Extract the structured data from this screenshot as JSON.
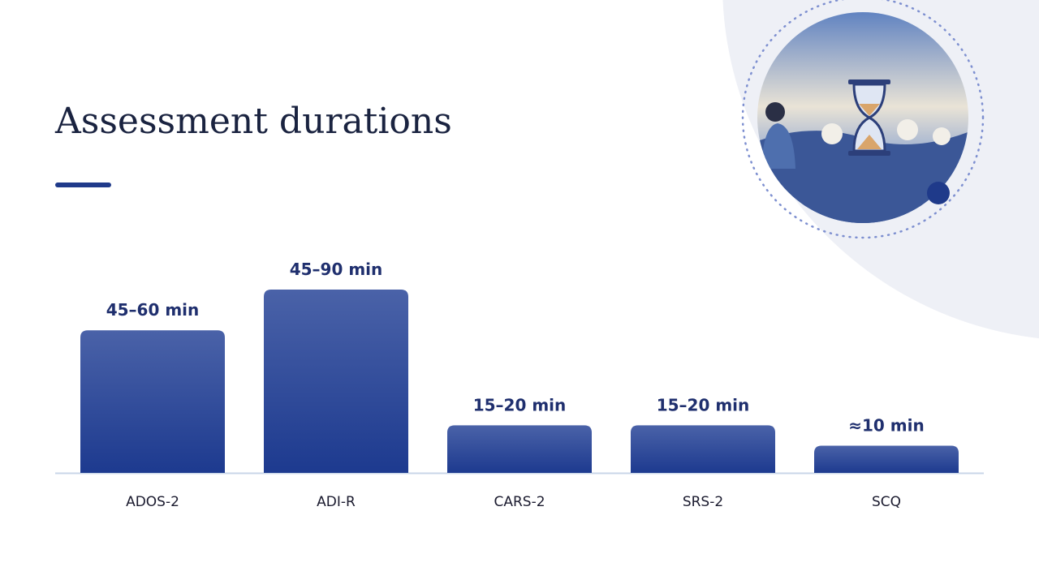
{
  "chart_data": {
    "type": "bar",
    "title": "Assessment durations",
    "categories": [
      "ADOS-2",
      "ADI-R",
      "CARS-2",
      "SRS-2",
      "SCQ"
    ],
    "values": [
      52.5,
      67.5,
      17.5,
      17.5,
      10
    ],
    "value_labels": [
      "45–60 min",
      "45–90 min",
      "15–20 min",
      "15–20 min",
      "≈10 min"
    ],
    "color": "#1d3a8f"
  }
}
